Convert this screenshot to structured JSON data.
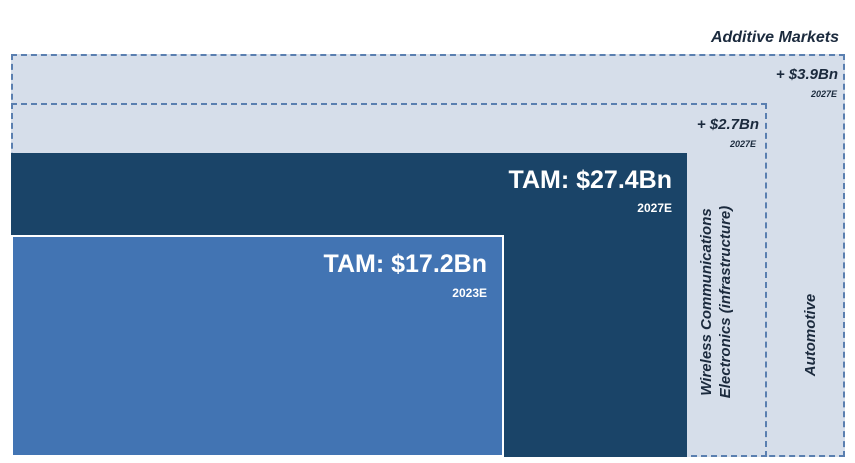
{
  "header": {
    "title": "Additive Markets"
  },
  "additive": {
    "outer": {
      "value": "+ $3.9Bn",
      "year": "2027E",
      "segment": "Automotive"
    },
    "inner": {
      "value": "+ $2.7Bn",
      "year": "2027E",
      "segment_line1": "Wireless Communications",
      "segment_line2": "Electronics (infrastructure)"
    }
  },
  "tam_2027": {
    "label": "TAM: $27.4Bn",
    "year": "2027E"
  },
  "tam_2023": {
    "label": "TAM: $17.2Bn",
    "year": "2023E"
  },
  "colors": {
    "dark": "#1a4468",
    "mid": "#4274b3",
    "light": "#d6deea",
    "dash": "#5a7fb0"
  }
}
